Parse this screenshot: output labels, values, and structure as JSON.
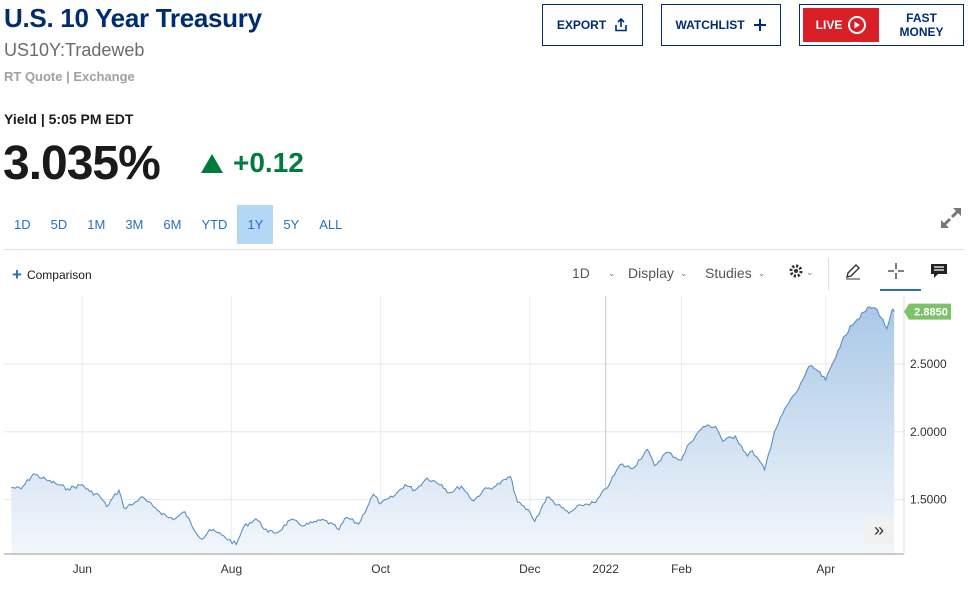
{
  "header": {
    "title": "U.S. 10 Year Treasury",
    "symbol": "US10Y:Tradeweb",
    "quote_source": "RT Quote | Exchange",
    "buttons": {
      "export": "EXPORT",
      "watchlist": "WATCHLIST",
      "live": "LIVE",
      "fast_money": "FAST MONEY"
    }
  },
  "quote": {
    "label": "Yield | 5:05 PM EDT",
    "price": "3.035%",
    "change": "+0.12",
    "change_color": "#007a3d"
  },
  "ranges": {
    "items": [
      "1D",
      "5D",
      "1M",
      "3M",
      "6M",
      "YTD",
      "1Y",
      "5Y",
      "ALL"
    ],
    "active": "1Y"
  },
  "toolbar": {
    "comparison": "Comparison",
    "interval": "1D",
    "display": "Display",
    "studies": "Studies",
    "icons": [
      "settings-icon",
      "draw-pencil-icon",
      "crosshair-icon",
      "comment-icon"
    ]
  },
  "chart_data": {
    "type": "area",
    "x_ticks": [
      "Jun",
      "Aug",
      "Oct",
      "Dec",
      "2022",
      "Feb",
      "Apr"
    ],
    "y_ticks": [
      "1.5000",
      "2.0000",
      "2.5000"
    ],
    "ylim": [
      1.1,
      3.0
    ],
    "last_value": "2.8850",
    "line_color": "#5b8fc4",
    "fill_top": "#a9c8e6",
    "fill_bottom": "#f3f7fc",
    "badge_color": "#7dc26a",
    "grid": true,
    "series": [
      {
        "x": "2021-05-03",
        "y": 1.59
      },
      {
        "x": "2021-05-07",
        "y": 1.58
      },
      {
        "x": "2021-05-12",
        "y": 1.69
      },
      {
        "x": "2021-05-18",
        "y": 1.64
      },
      {
        "x": "2021-05-21",
        "y": 1.62
      },
      {
        "x": "2021-05-26",
        "y": 1.58
      },
      {
        "x": "2021-06-01",
        "y": 1.61
      },
      {
        "x": "2021-06-04",
        "y": 1.56
      },
      {
        "x": "2021-06-08",
        "y": 1.53
      },
      {
        "x": "2021-06-11",
        "y": 1.45
      },
      {
        "x": "2021-06-16",
        "y": 1.57
      },
      {
        "x": "2021-06-18",
        "y": 1.44
      },
      {
        "x": "2021-06-22",
        "y": 1.47
      },
      {
        "x": "2021-06-25",
        "y": 1.52
      },
      {
        "x": "2021-06-30",
        "y": 1.45
      },
      {
        "x": "2021-07-06",
        "y": 1.37
      },
      {
        "x": "2021-07-09",
        "y": 1.36
      },
      {
        "x": "2021-07-13",
        "y": 1.41
      },
      {
        "x": "2021-07-16",
        "y": 1.3
      },
      {
        "x": "2021-07-20",
        "y": 1.21
      },
      {
        "x": "2021-07-23",
        "y": 1.28
      },
      {
        "x": "2021-07-28",
        "y": 1.24
      },
      {
        "x": "2021-08-03",
        "y": 1.17
      },
      {
        "x": "2021-08-06",
        "y": 1.3
      },
      {
        "x": "2021-08-11",
        "y": 1.36
      },
      {
        "x": "2021-08-16",
        "y": 1.26
      },
      {
        "x": "2021-08-20",
        "y": 1.26
      },
      {
        "x": "2021-08-25",
        "y": 1.35
      },
      {
        "x": "2021-08-31",
        "y": 1.31
      },
      {
        "x": "2021-09-03",
        "y": 1.33
      },
      {
        "x": "2021-09-08",
        "y": 1.35
      },
      {
        "x": "2021-09-14",
        "y": 1.28
      },
      {
        "x": "2021-09-17",
        "y": 1.37
      },
      {
        "x": "2021-09-22",
        "y": 1.32
      },
      {
        "x": "2021-09-28",
        "y": 1.54
      },
      {
        "x": "2021-10-01",
        "y": 1.47
      },
      {
        "x": "2021-10-06",
        "y": 1.52
      },
      {
        "x": "2021-10-11",
        "y": 1.61
      },
      {
        "x": "2021-10-15",
        "y": 1.57
      },
      {
        "x": "2021-10-20",
        "y": 1.66
      },
      {
        "x": "2021-10-26",
        "y": 1.61
      },
      {
        "x": "2021-10-29",
        "y": 1.55
      },
      {
        "x": "2021-11-03",
        "y": 1.6
      },
      {
        "x": "2021-11-08",
        "y": 1.49
      },
      {
        "x": "2021-11-12",
        "y": 1.57
      },
      {
        "x": "2021-11-17",
        "y": 1.6
      },
      {
        "x": "2021-11-23",
        "y": 1.67
      },
      {
        "x": "2021-11-26",
        "y": 1.48
      },
      {
        "x": "2021-12-01",
        "y": 1.41
      },
      {
        "x": "2021-12-03",
        "y": 1.34
      },
      {
        "x": "2021-12-08",
        "y": 1.52
      },
      {
        "x": "2021-12-14",
        "y": 1.44
      },
      {
        "x": "2021-12-17",
        "y": 1.4
      },
      {
        "x": "2021-12-22",
        "y": 1.46
      },
      {
        "x": "2021-12-28",
        "y": 1.48
      },
      {
        "x": "2022-01-03",
        "y": 1.63
      },
      {
        "x": "2022-01-07",
        "y": 1.76
      },
      {
        "x": "2022-01-12",
        "y": 1.73
      },
      {
        "x": "2022-01-18",
        "y": 1.87
      },
      {
        "x": "2022-01-21",
        "y": 1.75
      },
      {
        "x": "2022-01-26",
        "y": 1.85
      },
      {
        "x": "2022-02-01",
        "y": 1.79
      },
      {
        "x": "2022-02-04",
        "y": 1.91
      },
      {
        "x": "2022-02-10",
        "y": 2.04
      },
      {
        "x": "2022-02-15",
        "y": 2.04
      },
      {
        "x": "2022-02-18",
        "y": 1.93
      },
      {
        "x": "2022-02-23",
        "y": 1.97
      },
      {
        "x": "2022-02-28",
        "y": 1.82
      },
      {
        "x": "2022-03-02",
        "y": 1.86
      },
      {
        "x": "2022-03-07",
        "y": 1.72
      },
      {
        "x": "2022-03-11",
        "y": 2.0
      },
      {
        "x": "2022-03-16",
        "y": 2.19
      },
      {
        "x": "2022-03-21",
        "y": 2.32
      },
      {
        "x": "2022-03-25",
        "y": 2.48
      },
      {
        "x": "2022-03-28",
        "y": 2.46
      },
      {
        "x": "2022-04-01",
        "y": 2.38
      },
      {
        "x": "2022-04-06",
        "y": 2.6
      },
      {
        "x": "2022-04-11",
        "y": 2.78
      },
      {
        "x": "2022-04-14",
        "y": 2.83
      },
      {
        "x": "2022-04-19",
        "y": 2.92
      },
      {
        "x": "2022-04-22",
        "y": 2.9
      },
      {
        "x": "2022-04-26",
        "y": 2.76
      },
      {
        "x": "2022-04-28",
        "y": 2.89
      },
      {
        "x": "2022-04-29",
        "y": 2.885
      }
    ]
  }
}
